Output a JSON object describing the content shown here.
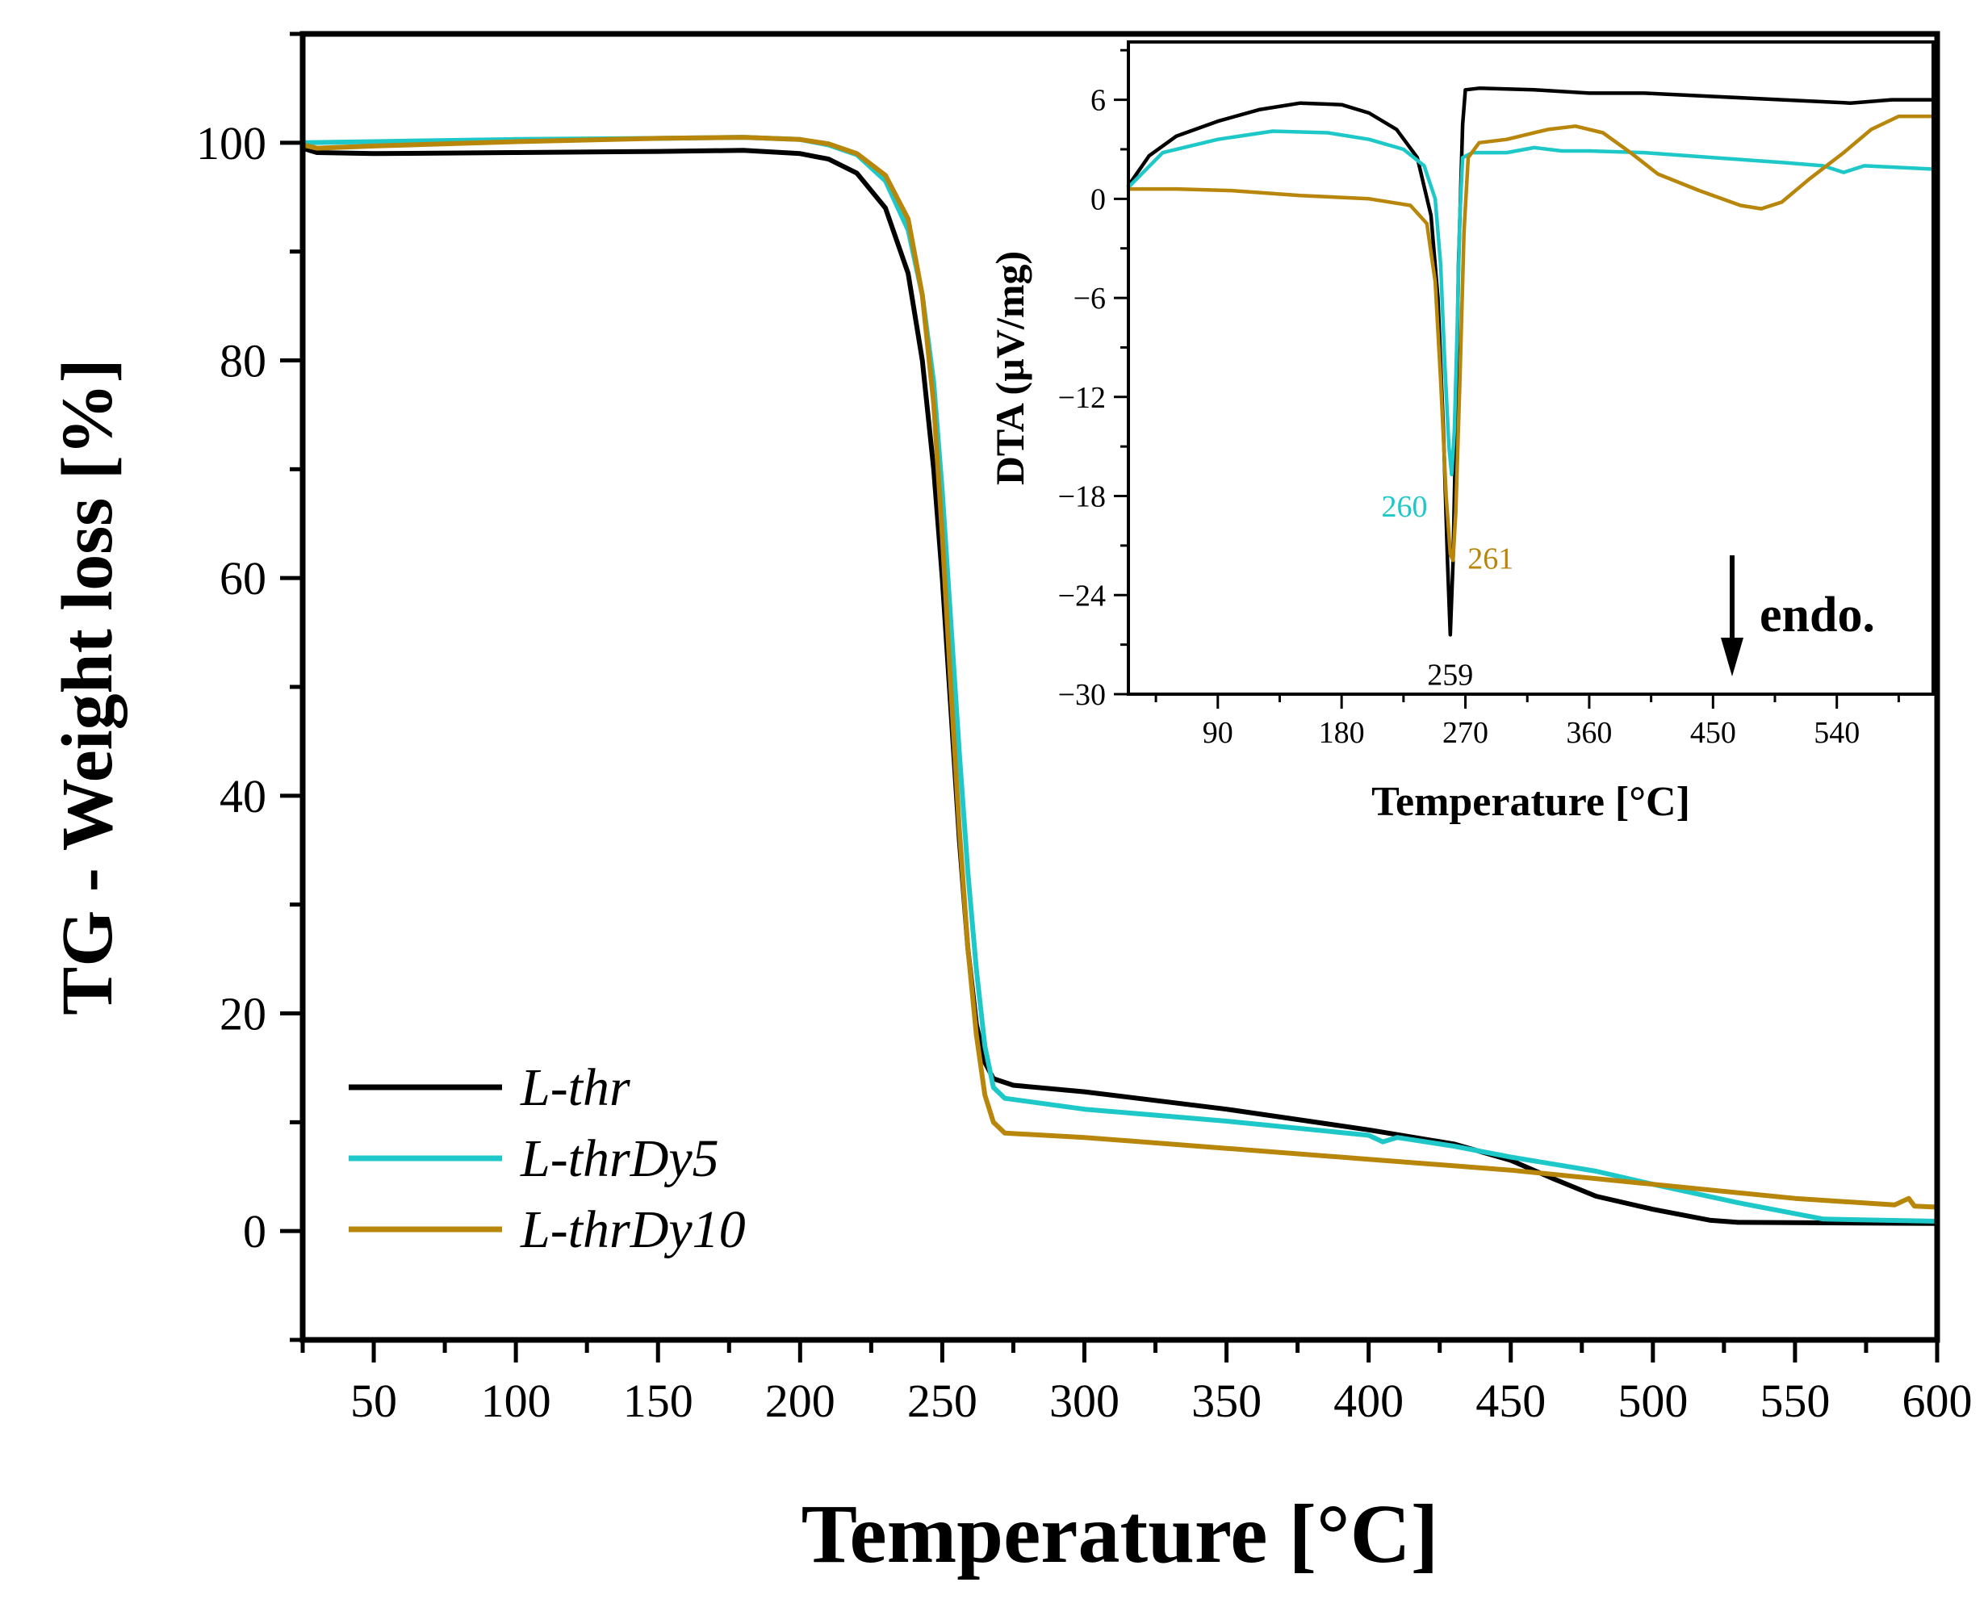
{
  "chart_data": [
    {
      "id": "main",
      "type": "line",
      "xlabel": "Temperature [°C]",
      "ylabel": "TG - Weight loss [%]",
      "xlim": [
        25,
        600
      ],
      "ylim": [
        -10,
        110
      ],
      "xticks": [
        50,
        100,
        150,
        200,
        250,
        300,
        350,
        400,
        450,
        500,
        550,
        600
      ],
      "yticks": [
        0,
        20,
        40,
        60,
        80,
        100
      ],
      "legend_position": "bottom-left",
      "series": [
        {
          "name": "L-thr",
          "color": "#000000",
          "points": [
            [
              25,
              99.5
            ],
            [
              30,
              99.1
            ],
            [
              50,
              99.0
            ],
            [
              100,
              99.1
            ],
            [
              150,
              99.2
            ],
            [
              180,
              99.3
            ],
            [
              200,
              99.0
            ],
            [
              210,
              98.5
            ],
            [
              220,
              97.2
            ],
            [
              230,
              94.0
            ],
            [
              238,
              88.0
            ],
            [
              243,
              80.0
            ],
            [
              247,
              70.0
            ],
            [
              250,
              60.0
            ],
            [
              253,
              48.0
            ],
            [
              256,
              36.0
            ],
            [
              259,
              26.0
            ],
            [
              262,
              19.0
            ],
            [
              265,
              15.5
            ],
            [
              268,
              14.0
            ],
            [
              275,
              13.4
            ],
            [
              300,
              12.8
            ],
            [
              350,
              11.2
            ],
            [
              400,
              9.3
            ],
            [
              430,
              8.0
            ],
            [
              450,
              6.5
            ],
            [
              465,
              4.8
            ],
            [
              480,
              3.2
            ],
            [
              500,
              2.0
            ],
            [
              520,
              1.0
            ],
            [
              530,
              0.8
            ],
            [
              600,
              0.7
            ]
          ]
        },
        {
          "name": "L-thrDy5",
          "color": "#1fc8c8",
          "points": [
            [
              25,
              100.0
            ],
            [
              50,
              100.1
            ],
            [
              100,
              100.3
            ],
            [
              150,
              100.4
            ],
            [
              180,
              100.5
            ],
            [
              200,
              100.3
            ],
            [
              210,
              99.8
            ],
            [
              220,
              98.9
            ],
            [
              230,
              96.5
            ],
            [
              238,
              92.0
            ],
            [
              243,
              86.0
            ],
            [
              247,
              78.0
            ],
            [
              250,
              68.0
            ],
            [
              253,
              56.0
            ],
            [
              256,
              44.0
            ],
            [
              259,
              33.0
            ],
            [
              262,
              24.0
            ],
            [
              265,
              17.0
            ],
            [
              268,
              13.2
            ],
            [
              272,
              12.2
            ],
            [
              300,
              11.2
            ],
            [
              350,
              10.1
            ],
            [
              400,
              8.8
            ],
            [
              405,
              8.2
            ],
            [
              410,
              8.6
            ],
            [
              430,
              7.8
            ],
            [
              450,
              6.8
            ],
            [
              480,
              5.5
            ],
            [
              500,
              4.3
            ],
            [
              530,
              2.6
            ],
            [
              550,
              1.6
            ],
            [
              560,
              1.1
            ],
            [
              600,
              0.9
            ]
          ]
        },
        {
          "name": "L-thrDy10",
          "color": "#b8860b",
          "points": [
            [
              25,
              99.8
            ],
            [
              30,
              99.5
            ],
            [
              50,
              99.7
            ],
            [
              100,
              100.1
            ],
            [
              150,
              100.4
            ],
            [
              180,
              100.5
            ],
            [
              200,
              100.3
            ],
            [
              210,
              99.9
            ],
            [
              220,
              99.0
            ],
            [
              230,
              97.0
            ],
            [
              238,
              93.0
            ],
            [
              243,
              86.0
            ],
            [
              247,
              76.0
            ],
            [
              250,
              64.0
            ],
            [
              253,
              50.0
            ],
            [
              256,
              37.0
            ],
            [
              259,
              26.0
            ],
            [
              262,
              18.0
            ],
            [
              265,
              12.5
            ],
            [
              268,
              10.0
            ],
            [
              272,
              9.0
            ],
            [
              300,
              8.6
            ],
            [
              350,
              7.6
            ],
            [
              400,
              6.6
            ],
            [
              450,
              5.6
            ],
            [
              500,
              4.3
            ],
            [
              550,
              3.0
            ],
            [
              585,
              2.4
            ],
            [
              590,
              3.0
            ],
            [
              592,
              2.3
            ],
            [
              600,
              2.2
            ]
          ]
        }
      ]
    },
    {
      "id": "inset",
      "type": "line",
      "xlabel": "Temperature [°C]",
      "ylabel": "DTA (µV/mg)",
      "xlim": [
        25,
        610
      ],
      "ylim": [
        -30,
        9.5
      ],
      "xticks": [
        90,
        180,
        270,
        360,
        450,
        540
      ],
      "yticks": [
        6,
        0,
        -6,
        -12,
        -18,
        -24,
        -30
      ],
      "ytick_labels": [
        "6",
        "0",
        "−6",
        "−12",
        "−18",
        "−24",
        "−30"
      ],
      "annotations": [
        {
          "text": "260",
          "color": "#1fc8c8",
          "x": 260,
          "y": -16.7
        },
        {
          "text": "261",
          "color": "#b8860b",
          "x": 261,
          "y": -21.9
        },
        {
          "text": "259",
          "color": "#000000",
          "x": 259,
          "y": -26.4
        },
        {
          "text": "endo.",
          "color": "#000000",
          "arrow": "down"
        }
      ],
      "series": [
        {
          "name": "L-thr",
          "color": "#000000",
          "points": [
            [
              25,
              0.8
            ],
            [
              40,
              2.6
            ],
            [
              60,
              3.8
            ],
            [
              90,
              4.7
            ],
            [
              120,
              5.4
            ],
            [
              150,
              5.8
            ],
            [
              180,
              5.7
            ],
            [
              200,
              5.2
            ],
            [
              220,
              4.2
            ],
            [
              235,
              2.5
            ],
            [
              245,
              -1.0
            ],
            [
              250,
              -6.0
            ],
            [
              254,
              -14.0
            ],
            [
              257,
              -22.0
            ],
            [
              259,
              -26.4
            ],
            [
              261,
              -22.0
            ],
            [
              263,
              -14.0
            ],
            [
              265,
              -4.0
            ],
            [
              268,
              4.5
            ],
            [
              270,
              6.6
            ],
            [
              280,
              6.7
            ],
            [
              320,
              6.6
            ],
            [
              360,
              6.4
            ],
            [
              400,
              6.4
            ],
            [
              450,
              6.2
            ],
            [
              500,
              6.0
            ],
            [
              550,
              5.8
            ],
            [
              580,
              6.0
            ],
            [
              610,
              6.0
            ]
          ]
        },
        {
          "name": "L-thrDy5",
          "color": "#1fc8c8",
          "points": [
            [
              25,
              0.7
            ],
            [
              50,
              2.8
            ],
            [
              90,
              3.6
            ],
            [
              130,
              4.1
            ],
            [
              170,
              4.0
            ],
            [
              200,
              3.6
            ],
            [
              225,
              3.0
            ],
            [
              240,
              2.0
            ],
            [
              248,
              0.0
            ],
            [
              252,
              -4.0
            ],
            [
              255,
              -10.0
            ],
            [
              258,
              -15.0
            ],
            [
              260,
              -16.7
            ],
            [
              262,
              -14.0
            ],
            [
              264,
              -8.0
            ],
            [
              266,
              -1.0
            ],
            [
              268,
              2.5
            ],
            [
              275,
              2.8
            ],
            [
              300,
              2.8
            ],
            [
              320,
              3.1
            ],
            [
              340,
              2.9
            ],
            [
              360,
              2.9
            ],
            [
              400,
              2.8
            ],
            [
              450,
              2.5
            ],
            [
              500,
              2.2
            ],
            [
              530,
              2.0
            ],
            [
              545,
              1.6
            ],
            [
              560,
              2.0
            ],
            [
              610,
              1.8
            ]
          ]
        },
        {
          "name": "L-thrDy10",
          "color": "#b8860b",
          "points": [
            [
              25,
              0.6
            ],
            [
              60,
              0.6
            ],
            [
              100,
              0.5
            ],
            [
              150,
              0.2
            ],
            [
              200,
              0.0
            ],
            [
              230,
              -0.4
            ],
            [
              242,
              -1.5
            ],
            [
              248,
              -5.0
            ],
            [
              252,
              -11.0
            ],
            [
              256,
              -18.0
            ],
            [
              259,
              -21.5
            ],
            [
              261,
              -21.9
            ],
            [
              263,
              -19.0
            ],
            [
              266,
              -11.0
            ],
            [
              269,
              -2.0
            ],
            [
              272,
              2.5
            ],
            [
              280,
              3.4
            ],
            [
              300,
              3.6
            ],
            [
              330,
              4.2
            ],
            [
              350,
              4.4
            ],
            [
              370,
              4.0
            ],
            [
              390,
              2.8
            ],
            [
              410,
              1.5
            ],
            [
              440,
              0.5
            ],
            [
              470,
              -0.4
            ],
            [
              485,
              -0.6
            ],
            [
              500,
              -0.2
            ],
            [
              520,
              1.2
            ],
            [
              545,
              2.8
            ],
            [
              565,
              4.2
            ],
            [
              585,
              5.0
            ],
            [
              610,
              5.0
            ]
          ]
        }
      ]
    }
  ]
}
